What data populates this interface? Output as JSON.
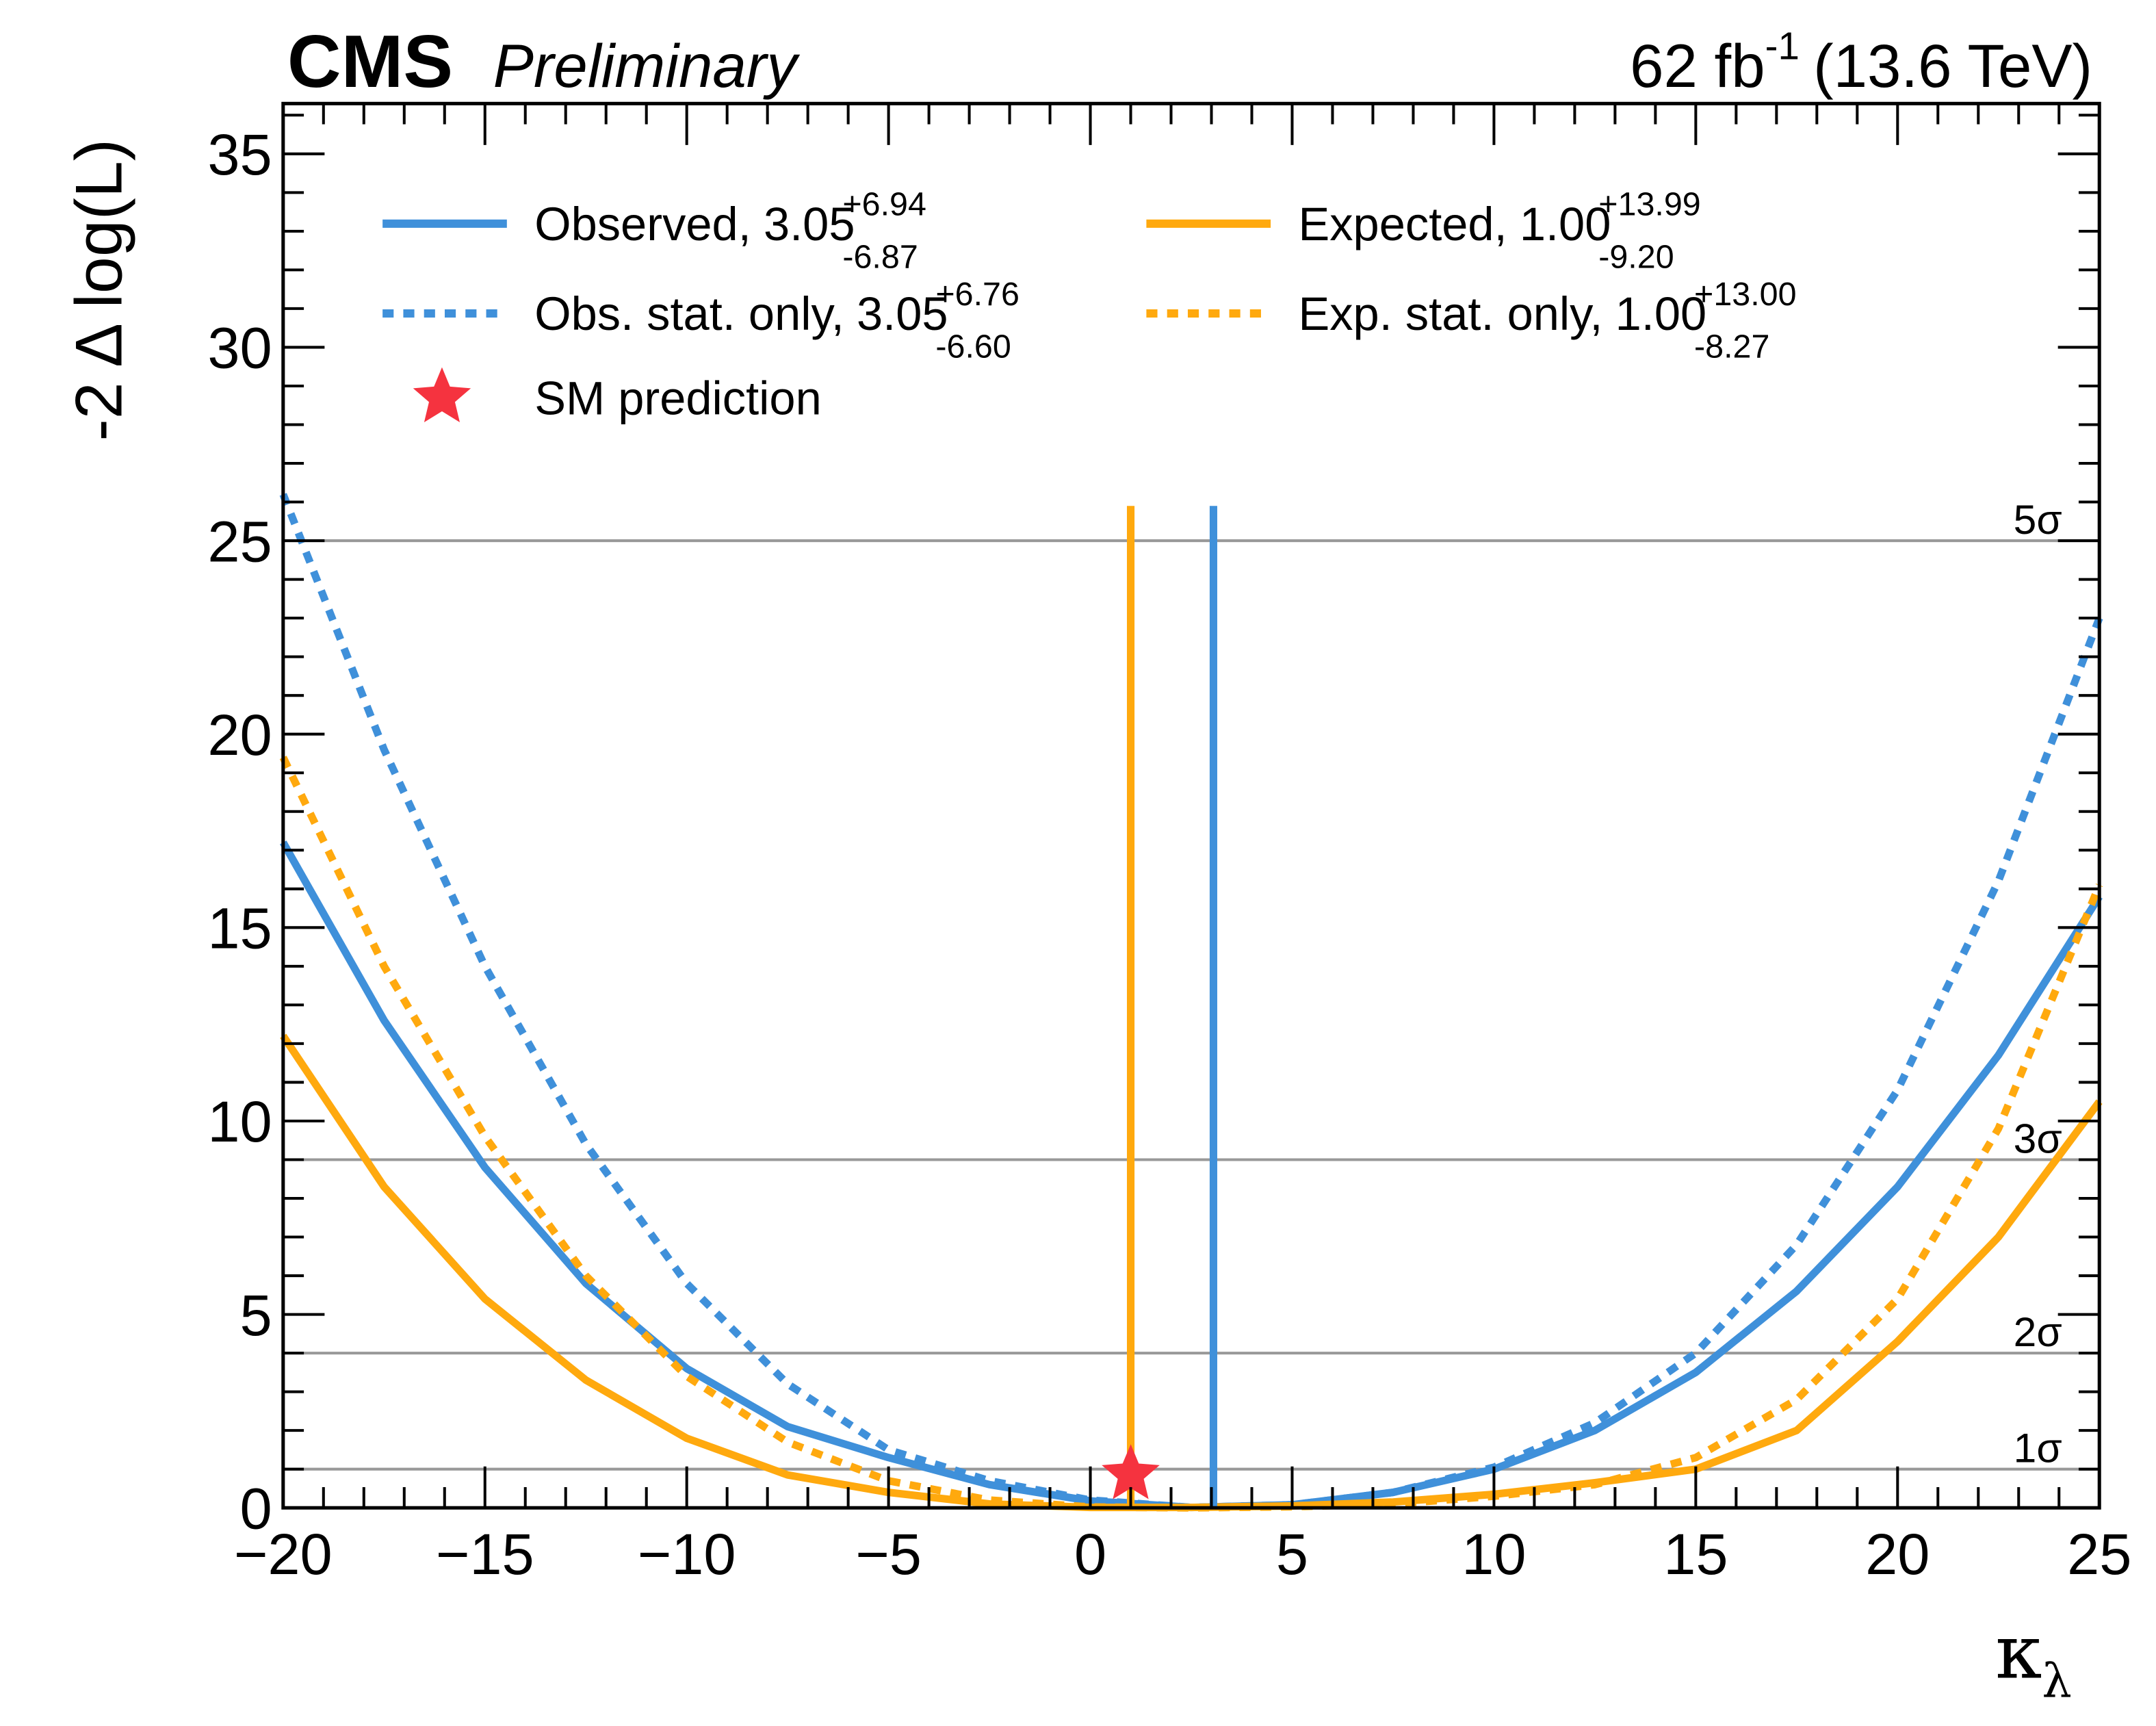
{
  "chart_data": {
    "type": "line",
    "experiment": "CMS",
    "status": "Preliminary",
    "lumi": {
      "text": "62 fb",
      "sup": "-1",
      "energy": "(13.6 TeV)"
    },
    "ylabel": "-2 Δ log(L)",
    "xlabel": {
      "symbol": "κ",
      "sub": "λ"
    },
    "xlim": [
      -20,
      25
    ],
    "ylim": [
      0,
      36.3
    ],
    "xticks": [
      {
        "value": -20,
        "label": "−20"
      },
      {
        "value": -15,
        "label": "−15"
      },
      {
        "value": -10,
        "label": "−10"
      },
      {
        "value": -5,
        "label": "−5"
      },
      0,
      5,
      10,
      15,
      20,
      25
    ],
    "yticks": [
      0,
      5,
      10,
      15,
      20,
      25,
      30,
      35
    ],
    "xminor": [
      -19,
      -18,
      -17,
      -16,
      -14,
      -13,
      -12,
      -11,
      -9,
      -8,
      -7,
      -6,
      -4,
      -3,
      -2,
      -1,
      1,
      2,
      3,
      4,
      6,
      7,
      8,
      9,
      11,
      12,
      13,
      14,
      16,
      17,
      18,
      19,
      21,
      22,
      23,
      24
    ],
    "yminor": [
      1,
      2,
      3,
      4,
      6,
      7,
      8,
      9,
      11,
      12,
      13,
      14,
      16,
      17,
      18,
      19,
      21,
      22,
      23,
      24,
      26,
      27,
      28,
      29,
      31,
      32,
      33,
      34,
      36
    ],
    "x": [
      -20,
      -17.5,
      -15,
      -12.5,
      -10,
      -7.5,
      -5,
      -2.5,
      0,
      2.5,
      5,
      7.5,
      10,
      12.5,
      15,
      17.5,
      20,
      22.5,
      25
    ],
    "series": [
      {
        "name": "Observed,",
        "color": "#3f90da",
        "dashed": false,
        "best_fit": {
          "value": 3.05,
          "label": "3.05"
        },
        "unc_up": "+6.94",
        "unc_down": "-6.87",
        "values": [
          17.2,
          12.6,
          8.8,
          5.8,
          3.6,
          2.1,
          1.3,
          0.6,
          0.18,
          0.01,
          0.08,
          0.4,
          1.0,
          2.0,
          3.5,
          5.6,
          8.3,
          11.7,
          15.8
        ]
      },
      {
        "name": "Obs. stat. only,",
        "color": "#3f90da",
        "dashed": true,
        "best_fit": {
          "value": 3.05,
          "label": "3.05"
        },
        "unc_up": "+6.76",
        "unc_down": "-6.60",
        "values": [
          26.2,
          19.6,
          14.0,
          9.4,
          5.8,
          3.2,
          1.5,
          0.7,
          0.2,
          0.01,
          0.08,
          0.4,
          1.05,
          2.2,
          4.0,
          6.8,
          10.8,
          16.2,
          23.0
        ]
      },
      {
        "name": "Expected,",
        "color": "#ffa90e",
        "dashed": false,
        "best_fit": {
          "value": 1.0,
          "label": "1.00"
        },
        "unc_up": "+13.99",
        "unc_down": "-9.20",
        "values": [
          12.2,
          8.3,
          5.4,
          3.3,
          1.8,
          0.85,
          0.4,
          0.1,
          0.01,
          0.01,
          0.05,
          0.15,
          0.35,
          0.65,
          1.0,
          2.0,
          4.3,
          7.0,
          10.5
        ]
      },
      {
        "name": "Exp. stat. only,",
        "color": "#ffa90e",
        "dashed": true,
        "best_fit": {
          "value": 1.0,
          "label": "1.00"
        },
        "unc_up": "+13.00",
        "unc_down": "-8.27",
        "values": [
          19.4,
          14.0,
          9.6,
          6.0,
          3.4,
          1.7,
          0.7,
          0.2,
          0.02,
          0.0,
          0.03,
          0.1,
          0.3,
          0.6,
          1.3,
          2.8,
          5.4,
          9.8,
          16.1
        ]
      }
    ],
    "best_fit_line_ylim": [
      0,
      25.9
    ],
    "sm_point": {
      "name": "SM prediction",
      "x": 1,
      "y": 0.86,
      "color": "#f5333f"
    },
    "thresholds": [
      {
        "value": 1,
        "label": "1σ"
      },
      {
        "value": 4,
        "label": "2σ"
      },
      {
        "value": 9,
        "label": "3σ"
      },
      {
        "value": 25,
        "label": "5σ"
      }
    ],
    "threshold_color": "#999999"
  }
}
